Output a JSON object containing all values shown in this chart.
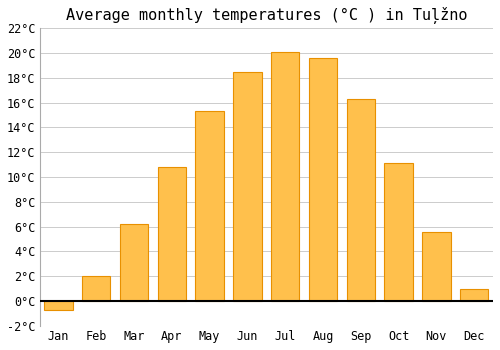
{
  "title": "Average monthly temperatures (°C ) in Tuļžno",
  "months": [
    "Jan",
    "Feb",
    "Mar",
    "Apr",
    "May",
    "Jun",
    "Jul",
    "Aug",
    "Sep",
    "Oct",
    "Nov",
    "Dec"
  ],
  "values": [
    -0.7,
    2.0,
    6.2,
    10.8,
    15.3,
    18.5,
    20.1,
    19.6,
    16.3,
    11.1,
    5.6,
    1.0
  ],
  "bar_color": "#FFC04C",
  "bar_edge_color": "#E89000",
  "background_color": "#FFFFFF",
  "grid_color": "#CCCCCC",
  "ylim": [
    -2,
    22
  ],
  "yticks": [
    0,
    2,
    4,
    6,
    8,
    10,
    12,
    14,
    16,
    18,
    20,
    22
  ],
  "yticks_extra": [
    -2
  ],
  "title_fontsize": 11,
  "tick_fontsize": 8.5,
  "zero_line_color": "#000000",
  "bar_width": 0.75
}
